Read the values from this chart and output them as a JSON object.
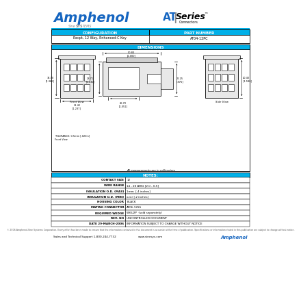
{
  "bg_color": "#ffffff",
  "amphenol_color": "#1565c0",
  "cyan_color": "#00b0e8",
  "dark_color": "#1a1a1a",
  "gray_color": "#888888",
  "config_label": "CONFIGURATION",
  "part_label": "PART NUMBER",
  "config_value": "Recpt, 12 Way, Enhanced-C Key",
  "part_value": "AT04-12PC",
  "dimensions_label": "DIMENSIONS",
  "notes_label": "NOTES:",
  "notes_rows": [
    [
      "CONTACT SIZE",
      "12"
    ],
    [
      "WIRE RANGE",
      "14 - 20 AWG [2.0 - 0.5]"
    ],
    [
      "INSULATION O.D. (MAX)",
      "1mm  [.4 inches]"
    ],
    [
      "INSULATION O.D. (MIN)",
      "over [.2 inches]"
    ],
    [
      "HOUSING COLOR",
      "BLACK"
    ],
    [
      "MATING CONNECTOR",
      "AT06-12SS"
    ],
    [
      "REQUIRED WEDGE",
      "W6U2P  (sold separately)"
    ]
  ],
  "rev_row": [
    "REV: NO",
    "UNCONTROLLED DOCUMENT"
  ],
  "date_row": [
    "DATE 29-MARCH-2006",
    "INFORMATION SUBJECT TO CHANGE WITHOUT NOTICE"
  ],
  "disclaimer": "© 2006 Amphenol-Sine Systems Corporation. Every effort has been made to ensure that the information contained in this document is accurate at the time of publication. Specifications or information stated in this publication are subject to change without notice.",
  "footer_left": "Sales and Technical Support 1-800-244-7732",
  "footer_mid": "www.sinesys.com",
  "footer_right": "Amphenol",
  "all_dims_note": "All measurements are in millimeters"
}
